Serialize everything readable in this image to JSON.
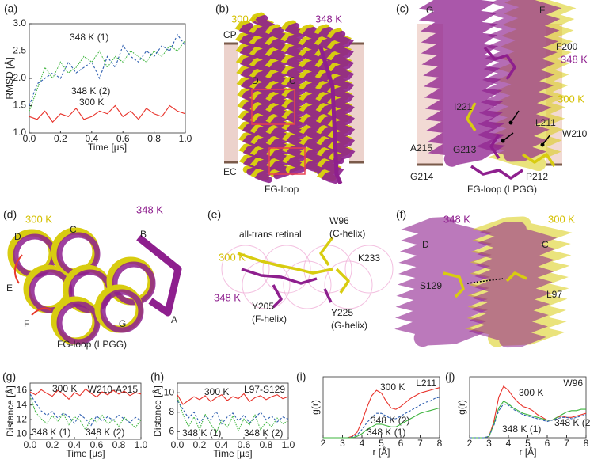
{
  "chart_data": [
    {
      "type": "line",
      "panel_label": "(a)",
      "xlabel": "Time [µs]",
      "ylabel": "RMSD [Å]",
      "xlim": [
        0,
        1
      ],
      "ylim": [
        1,
        3
      ],
      "xticks": [
        {
          "value": 0,
          "label": "0.0"
        },
        0.2,
        0.4,
        0.6,
        0.8,
        {
          "value": 1,
          "label": "1.0"
        }
      ],
      "yticks": [
        {
          "value": 1,
          "label": "1.0"
        },
        1.5,
        {
          "value": 2,
          "label": "2.0"
        },
        2.5,
        {
          "value": 3,
          "label": "3.0"
        }
      ],
      "x": [
        0,
        0.05,
        0.1,
        0.15,
        0.2,
        0.25,
        0.3,
        0.35,
        0.4,
        0.45,
        0.5,
        0.55,
        0.6,
        0.65,
        0.7,
        0.75,
        0.8,
        0.85,
        0.9,
        0.95,
        1
      ],
      "series": [
        {
          "name": "348 K (1)",
          "color": "#3cb43c",
          "line_style": "dotted",
          "values": [
            1.4,
            1.8,
            2.2,
            2.0,
            2.3,
            2.1,
            2.2,
            2.4,
            2.3,
            2.5,
            2.2,
            2.4,
            2.3,
            2.5,
            2.4,
            2.3,
            2.5,
            2.4,
            2.6,
            2.5,
            2.7
          ]
        },
        {
          "name": "348 K (2)",
          "color": "#2f5fb0",
          "line_style": "dashed",
          "values": [
            1.5,
            1.9,
            2.0,
            2.1,
            2.0,
            2.3,
            2.1,
            2.2,
            2.3,
            2.0,
            2.4,
            2.2,
            2.6,
            2.4,
            2.3,
            2.5,
            2.4,
            2.6,
            2.5,
            2.8,
            2.6
          ]
        },
        {
          "name": "300 K",
          "color": "#e8342c",
          "line_style": "solid",
          "values": [
            1.3,
            1.25,
            1.4,
            1.2,
            1.35,
            1.3,
            1.45,
            1.25,
            1.3,
            1.4,
            1.35,
            1.5,
            1.3,
            1.4,
            1.25,
            1.45,
            1.35,
            1.3,
            1.5,
            1.4,
            1.35
          ]
        }
      ]
    },
    {
      "type": "line",
      "panel_label": "(g)",
      "annotation": "W210-A215",
      "xlabel": "Time [µs]",
      "ylabel": "Distance [Å]",
      "xlim": [
        0,
        1
      ],
      "ylim": [
        9.3,
        17
      ],
      "xticks": [
        {
          "value": 0,
          "label": "0.0"
        },
        0.2,
        0.4,
        0.6,
        0.8,
        {
          "value": 1,
          "label": "1.0"
        }
      ],
      "yticks": [
        10,
        12,
        14,
        16
      ],
      "x": [
        0,
        0.05,
        0.1,
        0.15,
        0.2,
        0.25,
        0.3,
        0.35,
        0.4,
        0.45,
        0.5,
        0.55,
        0.6,
        0.65,
        0.7,
        0.75,
        0.8,
        0.85,
        0.9,
        0.95,
        1
      ],
      "series": [
        {
          "name": "300 K",
          "color": "#e8342c",
          "line_style": "solid",
          "values": [
            15.8,
            15.4,
            16.1,
            15.6,
            15.2,
            16,
            15.5,
            14.8,
            15.7,
            15.3,
            16.2,
            15.6,
            15.1,
            15.8,
            15.4,
            16,
            15.5,
            15.9,
            15.3,
            15.7,
            15.5
          ]
        },
        {
          "name": "348 K (1)",
          "color": "#3cb43c",
          "line_style": "dotted",
          "values": [
            15.2,
            13,
            12.1,
            11.5,
            12.5,
            11.8,
            12.8,
            11.3,
            12.4,
            11.9,
            10.6,
            12.2,
            11.7,
            12.6,
            11.4,
            12,
            11.1,
            12.3,
            11.6,
            10.9,
            12
          ]
        },
        {
          "name": "348 K (2)",
          "color": "#2f5fb0",
          "line_style": "dashed",
          "values": [
            15.5,
            14.3,
            13.2,
            12.6,
            13.1,
            12.2,
            12.9,
            12.4,
            11.5,
            12.7,
            12.1,
            11.2,
            12.5,
            11.8,
            12.4,
            11.9,
            12.6,
            12.1,
            11.6,
            12.3,
            11.9
          ]
        }
      ]
    },
    {
      "type": "line",
      "panel_label": "(h)",
      "annotation": "L97-S129",
      "xlabel": "Time [µs]",
      "ylabel": "Distance [Å]",
      "xlim": [
        0,
        1
      ],
      "ylim": [
        5.2,
        11
      ],
      "xticks": [
        {
          "value": 0,
          "label": "0.0"
        },
        0.2,
        0.4,
        0.6,
        0.8,
        {
          "value": 1,
          "label": "1.0"
        }
      ],
      "yticks": [
        6,
        8,
        10
      ],
      "x": [
        0,
        0.05,
        0.1,
        0.15,
        0.2,
        0.25,
        0.3,
        0.35,
        0.4,
        0.45,
        0.5,
        0.55,
        0.6,
        0.65,
        0.7,
        0.75,
        0.8,
        0.85,
        0.9,
        0.95,
        1
      ],
      "series": [
        {
          "name": "300 K",
          "color": "#e8342c",
          "line_style": "solid",
          "values": [
            9.8,
            8.8,
            9.2,
            9.6,
            9.3,
            9.7,
            9.1,
            9.5,
            9.8,
            9.2,
            9.6,
            9.4,
            9.9,
            9.1,
            9.5,
            9.7,
            9.3,
            9.6,
            9.8,
            9.4,
            9.6
          ]
        },
        {
          "name": "348 K (1)",
          "color": "#3cb43c",
          "line_style": "dotted",
          "values": [
            9.5,
            7.8,
            6.5,
            7.5,
            6.2,
            7.8,
            6.8,
            5.9,
            7.2,
            6.4,
            7.6,
            6.1,
            7.3,
            6.7,
            7.7,
            6.2,
            7,
            6.5,
            7.4,
            6.8,
            7.1
          ]
        },
        {
          "name": "348 K (2)",
          "color": "#2f5fb0",
          "line_style": "dashed",
          "values": [
            9.2,
            8.3,
            7.4,
            8,
            6.9,
            7.6,
            7.2,
            8.1,
            6.8,
            7.5,
            7.9,
            7.1,
            7.7,
            6.9,
            7.4,
            8,
            7.2,
            7.6,
            7,
            7.5,
            7.3
          ]
        }
      ]
    },
    {
      "type": "line",
      "panel_label": "(i)",
      "annotation": "L211",
      "xlabel": "r [Å]",
      "ylabel": "g(r)",
      "xlim": [
        2,
        8
      ],
      "ylim": [
        0,
        0.45
      ],
      "xticks": [
        2,
        3,
        4,
        5,
        6,
        7,
        8
      ],
      "x": [
        2,
        2.25,
        2.5,
        2.75,
        3,
        3.25,
        3.5,
        3.75,
        4,
        4.25,
        4.5,
        4.75,
        5,
        5.25,
        5.5,
        5.75,
        6,
        6.25,
        6.5,
        6.75,
        7,
        7.25,
        7.5,
        7.75,
        8
      ],
      "series": [
        {
          "name": "300 K",
          "color": "#e8342c",
          "line_style": "solid",
          "values": [
            0,
            0,
            0,
            0,
            0,
            0,
            0.01,
            0.04,
            0.12,
            0.22,
            0.31,
            0.35,
            0.33,
            0.27,
            0.22,
            0.21,
            0.23,
            0.26,
            0.29,
            0.31,
            0.33,
            0.34,
            0.35,
            0.36,
            0.37
          ]
        },
        {
          "name": "348 K (2)",
          "color": "#2f5fb0",
          "line_style": "dashed",
          "values": [
            0,
            0,
            0,
            0,
            0,
            0,
            0.005,
            0.02,
            0.06,
            0.11,
            0.15,
            0.18,
            0.18,
            0.16,
            0.14,
            0.14,
            0.16,
            0.18,
            0.2,
            0.22,
            0.24,
            0.26,
            0.27,
            0.29,
            0.3
          ]
        },
        {
          "name": "348 K (1)",
          "color": "#3cb43c",
          "line_style": "solid",
          "values": [
            0,
            0,
            0,
            0,
            0,
            0,
            0,
            0.01,
            0.03,
            0.06,
            0.08,
            0.1,
            0.1,
            0.09,
            0.08,
            0.08,
            0.1,
            0.12,
            0.14,
            0.16,
            0.18,
            0.19,
            0.2,
            0.21,
            0.22
          ]
        }
      ]
    },
    {
      "type": "line",
      "panel_label": "(j)",
      "annotation": "W96",
      "xlabel": "r [Å]",
      "ylabel": "g(r)",
      "xlim": [
        2,
        8
      ],
      "ylim": [
        0,
        0.45
      ],
      "xticks": [
        2,
        3,
        4,
        5,
        6,
        7,
        8
      ],
      "x": [
        2,
        2.25,
        2.5,
        2.75,
        3,
        3.25,
        3.5,
        3.75,
        4,
        4.25,
        4.5,
        4.75,
        5,
        5.25,
        5.5,
        5.75,
        6,
        6.25,
        6.5,
        6.75,
        7,
        7.25,
        7.5,
        7.75,
        8
      ],
      "series": [
        {
          "name": "300 K",
          "color": "#e8342c",
          "line_style": "solid",
          "values": [
            0,
            0,
            0,
            0,
            0.01,
            0.12,
            0.3,
            0.38,
            0.35,
            0.3,
            0.26,
            0.23,
            0.22,
            0.2,
            0.17,
            0.15,
            0.13,
            0.13,
            0.15,
            0.16,
            0.15,
            0.15,
            0.16,
            0.17,
            0.18
          ]
        },
        {
          "name": "348 K (1)",
          "color": "#3cb43c",
          "line_style": "solid",
          "values": [
            0,
            0,
            0,
            0,
            0.01,
            0.1,
            0.22,
            0.27,
            0.25,
            0.22,
            0.2,
            0.18,
            0.17,
            0.16,
            0.15,
            0.14,
            0.13,
            0.13,
            0.15,
            0.17,
            0.19,
            0.2,
            0.2,
            0.21,
            0.21
          ]
        },
        {
          "name": "348 K (2)",
          "color": "#2f5fb0",
          "line_style": "dashed",
          "values": [
            0,
            0,
            0,
            0,
            0.01,
            0.09,
            0.2,
            0.25,
            0.24,
            0.21,
            0.19,
            0.17,
            0.16,
            0.15,
            0.14,
            0.13,
            0.12,
            0.13,
            0.14,
            0.15,
            0.15,
            0.14,
            0.15,
            0.16,
            0.17
          ]
        }
      ]
    }
  ],
  "panels": [
    {
      "label": "(b)",
      "texts": [
        "300 K",
        "348 K",
        "CP",
        "EC",
        "D",
        "C",
        "FG-loop"
      ]
    },
    {
      "label": "(c)",
      "texts": [
        "G",
        "F",
        "F200",
        "348 K",
        "300 K",
        "I221",
        "L211",
        "W210",
        "A215",
        "G213",
        "G214",
        "P212",
        "FG-loop (LPGG)"
      ]
    },
    {
      "label": "(d)",
      "texts": [
        "300 K",
        "348 K",
        "D",
        "C",
        "B",
        "E",
        "F",
        "G",
        "A",
        "FG-loop (LPGG)"
      ]
    },
    {
      "label": "(e)",
      "texts": [
        "all-trans retinal",
        "W96",
        "(C-helix)",
        "300 K",
        "348 K",
        "K233",
        "Y205",
        "(F-helix)",
        "Y225",
        "(G-helix)"
      ]
    },
    {
      "label": "(f)",
      "texts": [
        "348 K",
        "300 K",
        "D",
        "C",
        "S129",
        "L97"
      ]
    }
  ]
}
